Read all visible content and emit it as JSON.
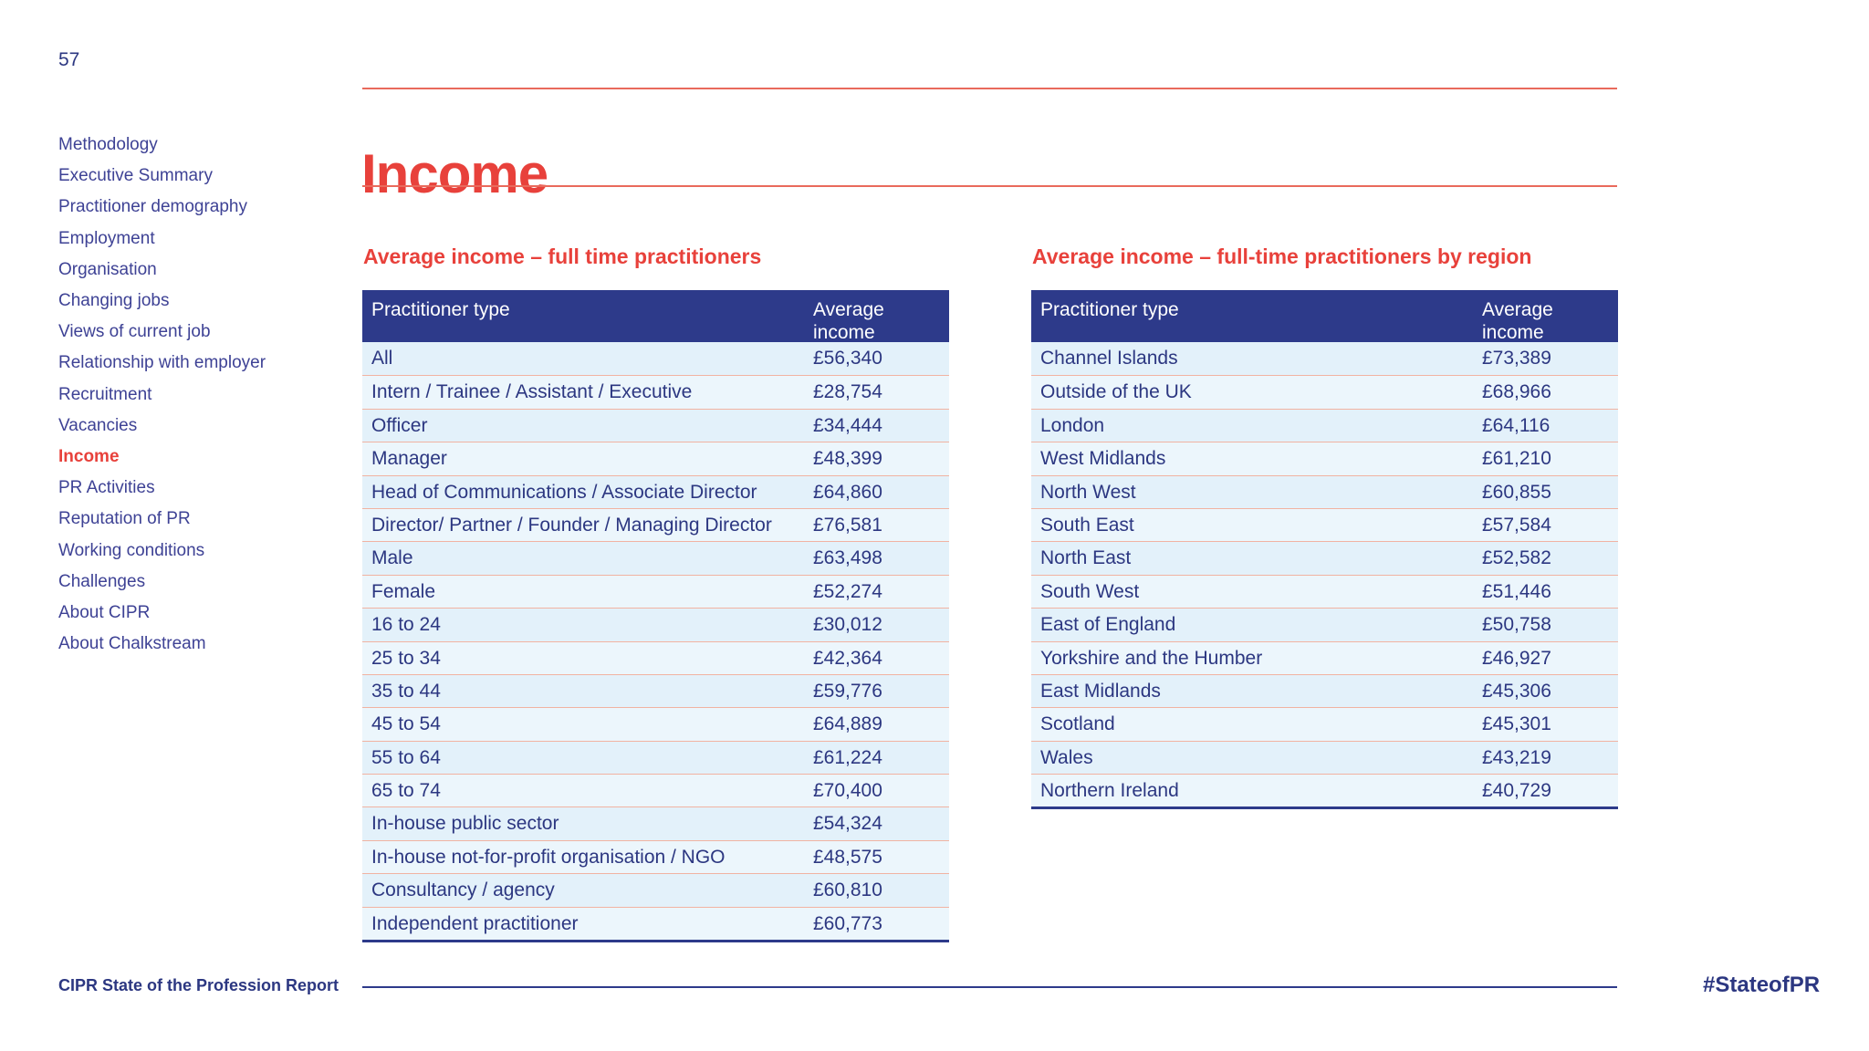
{
  "page": {
    "number": "57"
  },
  "sidebar": {
    "items": [
      {
        "label": "Methodology",
        "active": false
      },
      {
        "label": "Executive Summary",
        "active": false
      },
      {
        "label": "Practitioner demography",
        "active": false
      },
      {
        "label": "Employment",
        "active": false
      },
      {
        "label": "Organisation",
        "active": false
      },
      {
        "label": "Changing jobs",
        "active": false
      },
      {
        "label": "Views of current job",
        "active": false
      },
      {
        "label": "Relationship with employer",
        "active": false
      },
      {
        "label": "Recruitment",
        "active": false
      },
      {
        "label": "Vacancies",
        "active": false
      },
      {
        "label": "Income",
        "active": true
      },
      {
        "label": "PR Activities",
        "active": false
      },
      {
        "label": "Reputation of PR",
        "active": false
      },
      {
        "label": "Working conditions",
        "active": false
      },
      {
        "label": "Challenges",
        "active": false
      },
      {
        "label": "About CIPR",
        "active": false
      },
      {
        "label": "About Chalkstream",
        "active": false
      }
    ]
  },
  "header": {
    "title": "Income"
  },
  "tables": [
    {
      "subtitle": "Average income – full time practitioners",
      "columns": [
        "Practitioner type",
        "Average income"
      ],
      "rows": [
        [
          "All",
          "£56,340"
        ],
        [
          "Intern / Trainee / Assistant / Executive",
          "£28,754"
        ],
        [
          "Officer",
          "£34,444"
        ],
        [
          "Manager",
          "£48,399"
        ],
        [
          "Head of Communications / Associate Director",
          "£64,860"
        ],
        [
          "Director/ Partner / Founder / Managing Director",
          "£76,581"
        ],
        [
          "Male",
          "£63,498"
        ],
        [
          "Female",
          "£52,274"
        ],
        [
          "16 to 24",
          "£30,012"
        ],
        [
          "25 to 34",
          "£42,364"
        ],
        [
          "35 to 44",
          "£59,776"
        ],
        [
          "45 to 54",
          "£64,889"
        ],
        [
          "55 to 64",
          "£61,224"
        ],
        [
          "65 to 74",
          "£70,400"
        ],
        [
          "In-house public sector",
          "£54,324"
        ],
        [
          "In-house not-for-profit organisation / NGO",
          "£48,575"
        ],
        [
          "Consultancy / agency",
          "£60,810"
        ],
        [
          "Independent practitioner",
          "£60,773"
        ]
      ]
    },
    {
      "subtitle": "Average income – full-time practitioners by region",
      "columns": [
        "Practitioner type",
        "Average income"
      ],
      "rows": [
        [
          "Channel Islands",
          "£73,389"
        ],
        [
          "Outside of the UK",
          "£68,966"
        ],
        [
          "London",
          "£64,116"
        ],
        [
          "West Midlands",
          "£61,210"
        ],
        [
          "North West",
          "£60,855"
        ],
        [
          "South East",
          "£57,584"
        ],
        [
          "North East",
          "£52,582"
        ],
        [
          "South West",
          "£51,446"
        ],
        [
          "East of England",
          "£50,758"
        ],
        [
          "Yorkshire and the Humber",
          "£46,927"
        ],
        [
          "East Midlands",
          "£45,306"
        ],
        [
          "Scotland",
          "£45,301"
        ],
        [
          "Wales",
          "£43,219"
        ],
        [
          "Northern Ireland",
          "£40,729"
        ]
      ]
    }
  ],
  "footer": {
    "report_name": "CIPR State of the Profession Report",
    "hashtag": "#StateofPR"
  },
  "colors": {
    "navy": "#2d3a8a",
    "text_navy": "#2c3781",
    "sidebar_navy": "#3e4295",
    "accent_red": "#e8413b",
    "rule_red": "#e96a5c",
    "row_blue": "#e3f1fa",
    "row_blue_alt": "#ecf6fc",
    "row_divider_salmon": "#f1b3a2"
  }
}
